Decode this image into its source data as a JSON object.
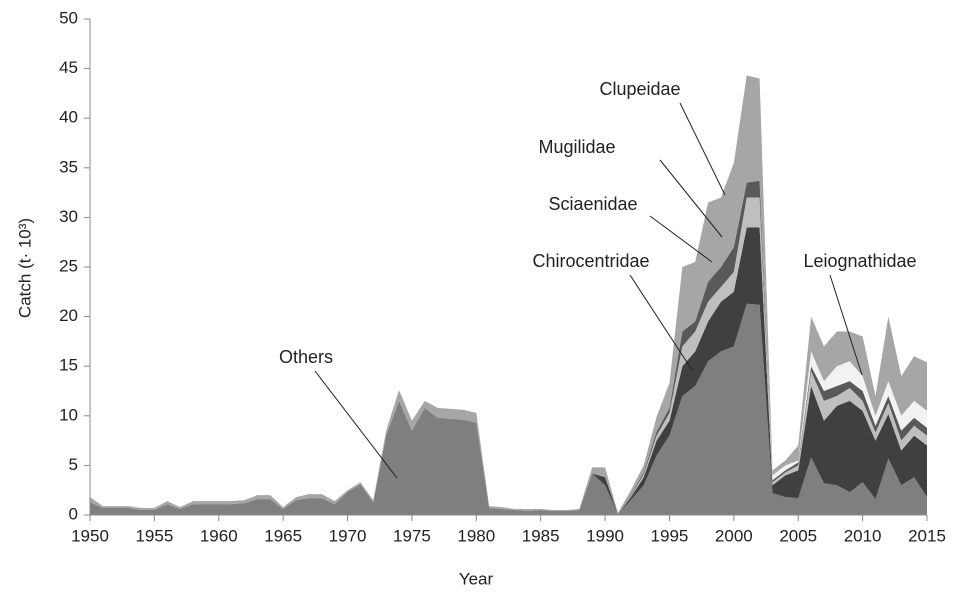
{
  "chart_data": {
    "type": "stacked_area",
    "xlabel": "Year",
    "ylabel": "Catch (t· 10³)",
    "x": [
      1950,
      1951,
      1952,
      1953,
      1954,
      1955,
      1956,
      1957,
      1958,
      1959,
      1960,
      1961,
      1962,
      1963,
      1964,
      1965,
      1966,
      1967,
      1968,
      1969,
      1970,
      1971,
      1972,
      1973,
      1974,
      1975,
      1976,
      1977,
      1978,
      1979,
      1980,
      1981,
      1982,
      1983,
      1984,
      1985,
      1986,
      1987,
      1988,
      1989,
      1990,
      1991,
      1992,
      1993,
      1994,
      1995,
      1996,
      1997,
      1998,
      1999,
      2000,
      2001,
      2002,
      2003,
      2004,
      2005,
      2006,
      2007,
      2008,
      2009,
      2010,
      2011,
      2012,
      2013,
      2014,
      2015
    ],
    "xlim": [
      1950,
      2015
    ],
    "xticks": [
      1950,
      1955,
      1960,
      1965,
      1970,
      1975,
      1980,
      1985,
      1990,
      1995,
      2000,
      2005,
      2010,
      2015
    ],
    "ylim": [
      0,
      50
    ],
    "yticks": [
      0,
      5,
      10,
      15,
      20,
      25,
      30,
      35,
      40,
      45,
      50
    ],
    "series": [
      {
        "name": "Clupeidae",
        "color": "#7f7f7f",
        "values": [
          1.3,
          0.7,
          0.7,
          0.7,
          0.5,
          0.5,
          1.1,
          0.6,
          1.1,
          1.1,
          1.1,
          1.1,
          1.2,
          1.6,
          1.6,
          0.6,
          1.5,
          1.7,
          1.7,
          1.1,
          2.3,
          3.1,
          1.3,
          8.0,
          11.5,
          8.5,
          10.8,
          9.8,
          9.7,
          9.6,
          9.3,
          0.7,
          0.6,
          0.5,
          0.4,
          0.5,
          0.4,
          0.4,
          0.5,
          4.2,
          3.0,
          0.1,
          1.5,
          3,
          6,
          8,
          12,
          13,
          15.5,
          16.5,
          17,
          21.3,
          21.2,
          2.2,
          1.8,
          1.7,
          5.8,
          3.2,
          3,
          2.3,
          3.3,
          1.6,
          5.7,
          3,
          3.8,
          1.8
        ]
      },
      {
        "name": "Mugilidae",
        "color": "#404040",
        "values": [
          0,
          0,
          0,
          0,
          0,
          0,
          0,
          0,
          0,
          0,
          0,
          0,
          0,
          0,
          0,
          0,
          0,
          0,
          0,
          0,
          0,
          0,
          0,
          0,
          0,
          0,
          0,
          0,
          0,
          0,
          0,
          0,
          0,
          0,
          0,
          0,
          0,
          0,
          0,
          0,
          0.8,
          0,
          0.3,
          0.8,
          1.5,
          1.5,
          3,
          3.5,
          4,
          5,
          5.5,
          7.7,
          7.8,
          0.8,
          2.2,
          2.8,
          7.2,
          6.3,
          8,
          9.2,
          7.2,
          5.9,
          4.5,
          3.5,
          4.2,
          5.2
        ]
      },
      {
        "name": "Sciaenidae",
        "color": "#bfbfbf",
        "values": [
          0,
          0,
          0,
          0,
          0,
          0,
          0,
          0,
          0,
          0,
          0,
          0,
          0,
          0,
          0,
          0,
          0,
          0,
          0,
          0,
          0,
          0,
          0,
          0,
          0,
          0,
          0,
          0,
          0,
          0,
          0,
          0,
          0,
          0,
          0,
          0,
          0,
          0,
          0,
          0,
          0,
          0,
          0.1,
          0.3,
          0.5,
          0.8,
          2,
          2,
          2,
          1.5,
          2,
          3,
          3,
          0.3,
          0.3,
          0.5,
          1.5,
          2,
          1,
          1.3,
          1,
          0.8,
          1.1,
          1,
          1,
          1
        ]
      },
      {
        "name": "Chirocentridae",
        "color": "#595959",
        "values": [
          0,
          0,
          0,
          0,
          0,
          0,
          0,
          0,
          0,
          0,
          0,
          0,
          0,
          0,
          0,
          0,
          0,
          0,
          0,
          0,
          0,
          0,
          0,
          0,
          0,
          0,
          0,
          0,
          0,
          0,
          0,
          0,
          0,
          0,
          0,
          0,
          0,
          0,
          0,
          0,
          0,
          0,
          0.1,
          0.2,
          0.4,
          0.5,
          1.5,
          1,
          2,
          2,
          2.5,
          1.5,
          1.7,
          0.2,
          0.2,
          0.3,
          0.5,
          1,
          1,
          0.7,
          1,
          0.7,
          0.7,
          1,
          0.8,
          0.8
        ]
      },
      {
        "name": "Leiognathidae",
        "color": "#f2f2f2",
        "values": [
          0,
          0,
          0,
          0,
          0,
          0,
          0,
          0,
          0,
          0,
          0,
          0,
          0,
          0,
          0,
          0,
          0,
          0,
          0,
          0,
          0,
          0,
          0,
          0,
          0,
          0,
          0,
          0,
          0,
          0,
          0,
          0,
          0,
          0,
          0,
          0,
          0,
          0,
          0,
          0,
          0,
          0,
          0,
          0,
          0,
          0,
          0,
          0,
          0,
          0,
          0,
          0,
          0,
          0.5,
          0.5,
          0.2,
          1.5,
          1,
          2,
          2,
          1.5,
          1,
          1.5,
          1.5,
          1.7,
          1.7
        ]
      },
      {
        "name": "Others",
        "color": "#a6a6a6",
        "values": [
          0.5,
          0.2,
          0.2,
          0.2,
          0.2,
          0.2,
          0.3,
          0.2,
          0.3,
          0.3,
          0.3,
          0.3,
          0.3,
          0.4,
          0.4,
          0.2,
          0.3,
          0.4,
          0.4,
          0.3,
          0.2,
          0.2,
          0.2,
          0.5,
          1.1,
          1.0,
          0.7,
          1.0,
          1.0,
          1.0,
          1.0,
          0.2,
          0.2,
          0.1,
          0.2,
          0.1,
          0.1,
          0.1,
          0.1,
          0.6,
          1.0,
          0.1,
          0.5,
          0.7,
          1.5,
          2.5,
          6.5,
          6,
          8,
          7,
          8.5,
          10.8,
          10.3,
          0.5,
          0.5,
          1.5,
          3.5,
          3.5,
          3.5,
          3,
          4,
          2,
          6.5,
          4,
          4.5,
          4.9
        ]
      }
    ]
  }
}
